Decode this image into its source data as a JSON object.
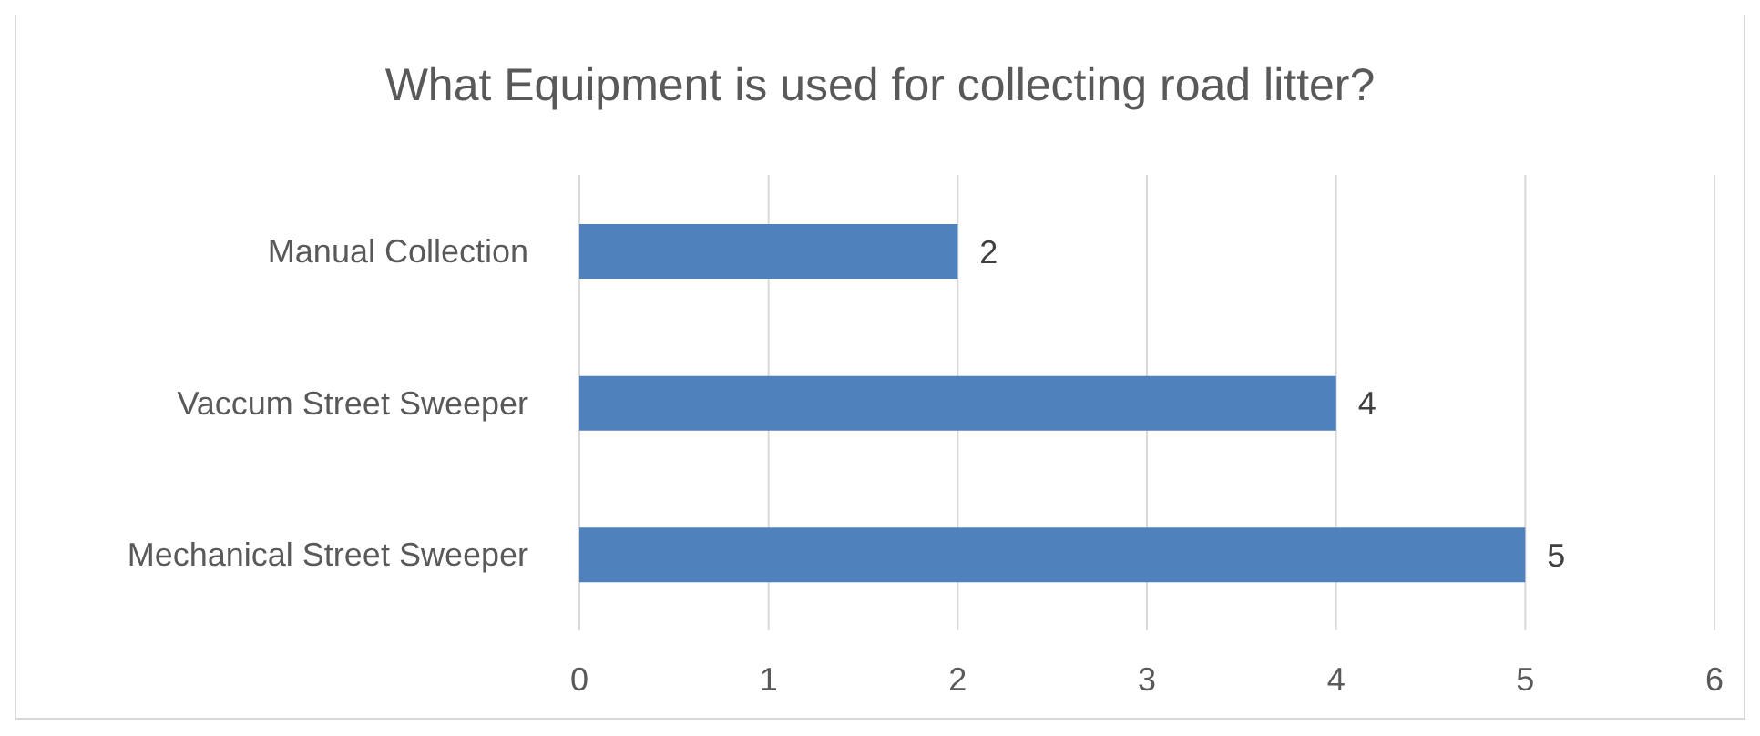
{
  "chart_data": {
    "type": "bar",
    "orientation": "horizontal",
    "title": "What Equipment is used for collecting road litter?",
    "categories": [
      "Manual Collection",
      "Vaccum Street Sweeper",
      "Mechanical Street Sweeper"
    ],
    "values": [
      2,
      4,
      5
    ],
    "color": "#4f81bd",
    "xlim": [
      0,
      6
    ],
    "xticks": [
      0,
      1,
      2,
      3,
      4,
      5,
      6
    ],
    "grid": "x",
    "data_labels": true
  }
}
